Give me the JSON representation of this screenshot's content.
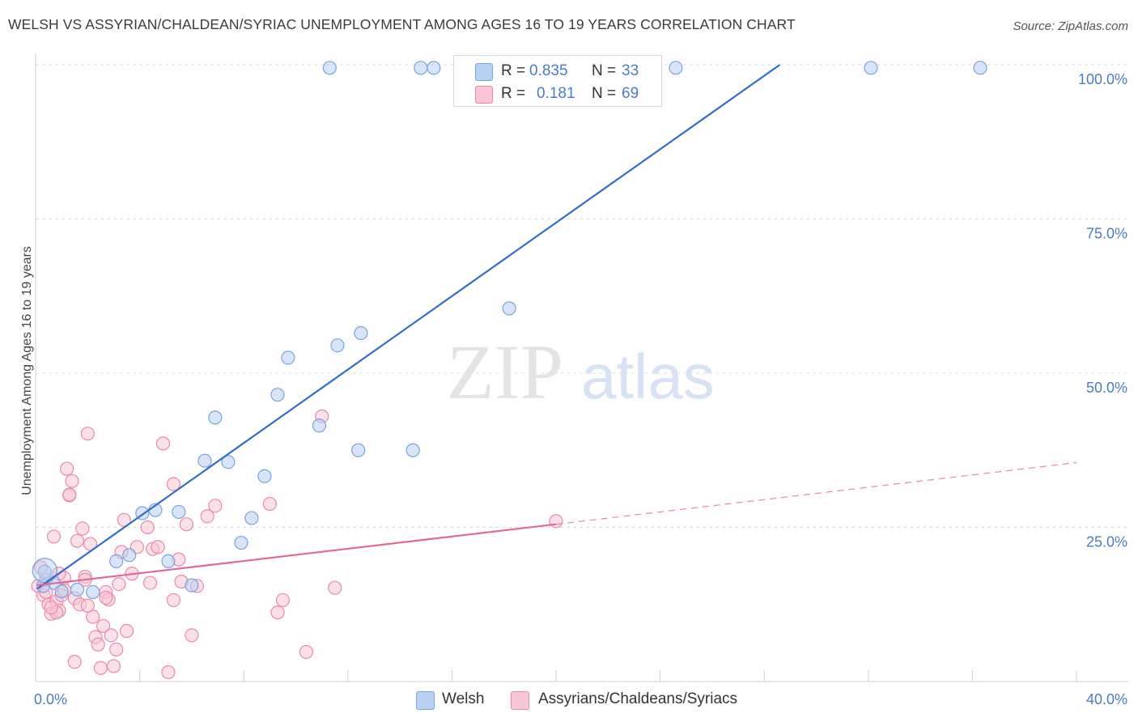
{
  "title": "WELSH VS ASSYRIAN/CHALDEAN/SYRIAC UNEMPLOYMENT AMONG AGES 16 TO 19 YEARS CORRELATION CHART",
  "source": "Source: ZipAtlas.com",
  "watermark": {
    "zip": "ZIP",
    "atlas": "atlas"
  },
  "legend": {
    "rows": [
      {
        "r_label": "R =",
        "r_value": "0.835",
        "n_label": "N =",
        "n_value": "33"
      },
      {
        "r_label": "R =",
        "r_value": "0.181",
        "n_label": "N =",
        "n_value": "69"
      }
    ]
  },
  "bottom_legend": {
    "welsh": "Welsh",
    "assyrian": "Assyrians/Chaldeans/Syriacs"
  },
  "colors": {
    "welsh_fill": "#b8d0f2",
    "welsh_stroke": "#7aa3dd",
    "welsh_line": "#2f6fc9",
    "assyrian_fill": "#f8c6d6",
    "assyrian_stroke": "#e98aa9",
    "assyrian_line": "#e0689a",
    "grid": "#dddddd",
    "tick_text": "#4a7cc7"
  },
  "chart_data": {
    "type": "scatter",
    "title": "WELSH VS ASSYRIAN/CHALDEAN/SYRIAC UNEMPLOYMENT AMONG AGES 16 TO 19 YEARS CORRELATION CHART",
    "xlabel": "",
    "ylabel": "Unemployment Among Ages 16 to 19 years",
    "xlim": [
      0,
      40
    ],
    "ylim": [
      0,
      100
    ],
    "x_tick_labels": [
      "0.0%",
      "40.0%"
    ],
    "y_ticks": [
      25,
      50,
      75,
      100
    ],
    "y_tick_labels": [
      "25.0%",
      "50.0%",
      "75.0%",
      "100.0%"
    ],
    "legend_position": "top-center",
    "series": [
      {
        "name": "Welsh",
        "r": 0.835,
        "n": 33,
        "points": [
          [
            0.35,
            17.8
          ],
          [
            0.7,
            16.0
          ],
          [
            1.0,
            14.6
          ],
          [
            1.6,
            14.9
          ],
          [
            2.2,
            14.5
          ],
          [
            3.1,
            19.5
          ],
          [
            3.6,
            20.5
          ],
          [
            4.1,
            27.3
          ],
          [
            4.6,
            27.8
          ],
          [
            5.1,
            19.5
          ],
          [
            5.5,
            27.5
          ],
          [
            6.0,
            15.6
          ],
          [
            6.9,
            42.8
          ],
          [
            6.5,
            35.8
          ],
          [
            7.4,
            35.6
          ],
          [
            7.9,
            22.5
          ],
          [
            8.3,
            26.5
          ],
          [
            8.8,
            33.3
          ],
          [
            9.3,
            46.5
          ],
          [
            9.7,
            52.5
          ],
          [
            10.9,
            41.5
          ],
          [
            11.6,
            54.5
          ],
          [
            12.4,
            37.5
          ],
          [
            12.5,
            56.5
          ],
          [
            14.5,
            37.5
          ],
          [
            18.2,
            60.5
          ],
          [
            11.3,
            99.5
          ],
          [
            14.8,
            99.5
          ],
          [
            15.3,
            99.5
          ],
          [
            24.6,
            99.5
          ],
          [
            32.1,
            99.5
          ],
          [
            36.3,
            99.5
          ],
          [
            0.3,
            15.5
          ]
        ],
        "trend": {
          "x0": 0.05,
          "y0": 15.0,
          "x1": 28.6,
          "y1": 100.0,
          "dashed_to": null
        }
      },
      {
        "name": "Assyrians/Chaldeans/Syriacs",
        "r": 0.181,
        "n": 69,
        "points": [
          [
            0.1,
            15.5
          ],
          [
            0.2,
            18.5
          ],
          [
            0.3,
            14.0
          ],
          [
            0.4,
            16.5
          ],
          [
            0.5,
            12.5
          ],
          [
            0.6,
            11.0
          ],
          [
            0.7,
            23.5
          ],
          [
            0.8,
            13.0
          ],
          [
            0.9,
            11.5
          ],
          [
            1.0,
            14.0
          ],
          [
            1.1,
            16.8
          ],
          [
            1.2,
            34.5
          ],
          [
            1.3,
            30.2
          ],
          [
            1.4,
            32.5
          ],
          [
            1.5,
            13.5
          ],
          [
            1.6,
            22.8
          ],
          [
            1.7,
            12.5
          ],
          [
            1.8,
            24.8
          ],
          [
            1.9,
            17.0
          ],
          [
            2.0,
            40.2
          ],
          [
            2.1,
            22.3
          ],
          [
            2.2,
            10.5
          ],
          [
            2.3,
            7.2
          ],
          [
            2.4,
            6.0
          ],
          [
            2.5,
            2.2
          ],
          [
            2.6,
            9.0
          ],
          [
            2.7,
            14.5
          ],
          [
            2.8,
            13.3
          ],
          [
            2.9,
            7.5
          ],
          [
            3.0,
            2.5
          ],
          [
            3.1,
            5.2
          ],
          [
            3.2,
            15.8
          ],
          [
            3.3,
            21.0
          ],
          [
            3.4,
            26.2
          ],
          [
            3.5,
            8.2
          ],
          [
            3.7,
            17.5
          ],
          [
            3.9,
            21.8
          ],
          [
            4.3,
            25.0
          ],
          [
            4.5,
            21.5
          ],
          [
            4.7,
            21.8
          ],
          [
            4.9,
            38.6
          ],
          [
            5.1,
            1.5
          ],
          [
            5.3,
            32.0
          ],
          [
            5.5,
            19.8
          ],
          [
            5.6,
            16.2
          ],
          [
            5.8,
            25.5
          ],
          [
            6.0,
            7.5
          ],
          [
            6.2,
            15.5
          ],
          [
            6.6,
            26.8
          ],
          [
            6.9,
            28.5
          ],
          [
            5.3,
            13.2
          ],
          [
            9.0,
            28.8
          ],
          [
            9.3,
            11.2
          ],
          [
            9.5,
            13.2
          ],
          [
            10.4,
            4.8
          ],
          [
            11.0,
            43.0
          ],
          [
            11.5,
            15.2
          ],
          [
            1.3,
            30.3
          ],
          [
            0.8,
            11.2
          ],
          [
            2.0,
            12.3
          ],
          [
            0.4,
            14.5
          ],
          [
            1.1,
            14.8
          ],
          [
            1.5,
            3.2
          ],
          [
            0.6,
            12.0
          ],
          [
            2.7,
            13.6
          ],
          [
            4.4,
            16.0
          ],
          [
            20.0,
            26.0
          ],
          [
            1.9,
            16.5
          ],
          [
            0.9,
            17.5
          ]
        ],
        "trend": {
          "x0": 0.05,
          "y0": 15.6,
          "x1": 20.0,
          "y1": 25.5,
          "dashed_to": {
            "x": 40.0,
            "y": 35.5
          }
        }
      }
    ]
  }
}
